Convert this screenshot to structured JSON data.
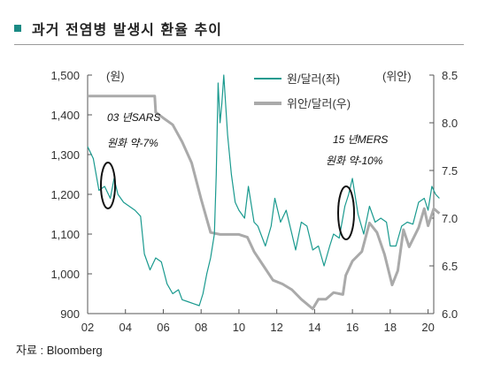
{
  "header": {
    "title": "과거 전염병 발생시 환율 추이"
  },
  "source": "자료 : Bloomberg",
  "colors": {
    "krw": "#1a9a8f",
    "cny": "#aaaaaa",
    "title_marker": "#1a8a84"
  },
  "chart_data": {
    "type": "line",
    "x_ticks": [
      "02",
      "04",
      "06",
      "08",
      "10",
      "12",
      "14",
      "16",
      "18",
      "20"
    ],
    "y_left": {
      "unit_label": "(원)",
      "ticks": [
        "900",
        "1,000",
        "1,100",
        "1,200",
        "1,300",
        "1,400",
        "1,500"
      ],
      "range": [
        900,
        1500
      ]
    },
    "y_right": {
      "unit_label": "(위안)",
      "ticks": [
        "6.0",
        "6.5",
        "7.0",
        "7.5",
        "8.0",
        "8.5"
      ],
      "range": [
        6.0,
        8.5
      ]
    },
    "series": [
      {
        "name": "원/달러(좌)",
        "axis": "left",
        "points": [
          [
            2002.0,
            1320
          ],
          [
            2002.3,
            1290
          ],
          [
            2002.6,
            1210
          ],
          [
            2002.9,
            1220
          ],
          [
            2003.2,
            1190
          ],
          [
            2003.4,
            1240
          ],
          [
            2003.6,
            1200
          ],
          [
            2003.9,
            1180
          ],
          [
            2004.2,
            1170
          ],
          [
            2004.5,
            1160
          ],
          [
            2004.8,
            1145
          ],
          [
            2005.0,
            1050
          ],
          [
            2005.3,
            1010
          ],
          [
            2005.6,
            1040
          ],
          [
            2005.9,
            1030
          ],
          [
            2006.2,
            975
          ],
          [
            2006.5,
            950
          ],
          [
            2006.8,
            960
          ],
          [
            2007.0,
            935
          ],
          [
            2007.3,
            930
          ],
          [
            2007.6,
            925
          ],
          [
            2007.9,
            920
          ],
          [
            2008.1,
            950
          ],
          [
            2008.3,
            1000
          ],
          [
            2008.5,
            1040
          ],
          [
            2008.7,
            1100
          ],
          [
            2008.8,
            1250
          ],
          [
            2008.9,
            1480
          ],
          [
            2009.0,
            1380
          ],
          [
            2009.1,
            1430
          ],
          [
            2009.2,
            1550
          ],
          [
            2009.4,
            1350
          ],
          [
            2009.6,
            1250
          ],
          [
            2009.8,
            1180
          ],
          [
            2010.0,
            1160
          ],
          [
            2010.3,
            1140
          ],
          [
            2010.5,
            1220
          ],
          [
            2010.8,
            1130
          ],
          [
            2011.0,
            1120
          ],
          [
            2011.4,
            1070
          ],
          [
            2011.7,
            1120
          ],
          [
            2011.9,
            1190
          ],
          [
            2012.2,
            1130
          ],
          [
            2012.5,
            1160
          ],
          [
            2012.8,
            1100
          ],
          [
            2013.0,
            1060
          ],
          [
            2013.3,
            1130
          ],
          [
            2013.6,
            1120
          ],
          [
            2013.9,
            1060
          ],
          [
            2014.2,
            1070
          ],
          [
            2014.5,
            1020
          ],
          [
            2014.8,
            1070
          ],
          [
            2015.0,
            1100
          ],
          [
            2015.3,
            1090
          ],
          [
            2015.6,
            1170
          ],
          [
            2015.8,
            1200
          ],
          [
            2016.0,
            1240
          ],
          [
            2016.3,
            1150
          ],
          [
            2016.6,
            1100
          ],
          [
            2016.9,
            1170
          ],
          [
            2017.2,
            1130
          ],
          [
            2017.5,
            1140
          ],
          [
            2017.8,
            1130
          ],
          [
            2018.0,
            1070
          ],
          [
            2018.3,
            1070
          ],
          [
            2018.6,
            1120
          ],
          [
            2018.9,
            1130
          ],
          [
            2019.2,
            1125
          ],
          [
            2019.5,
            1180
          ],
          [
            2019.8,
            1190
          ],
          [
            2020.0,
            1160
          ],
          [
            2020.2,
            1220
          ],
          [
            2020.4,
            1200
          ],
          [
            2020.6,
            1190
          ]
        ]
      },
      {
        "name": "위안/달러(우)",
        "axis": "right",
        "points": [
          [
            2002.0,
            8.28
          ],
          [
            2005.55,
            8.28
          ],
          [
            2005.6,
            8.11
          ],
          [
            2006.0,
            8.05
          ],
          [
            2006.5,
            7.98
          ],
          [
            2007.0,
            7.8
          ],
          [
            2007.5,
            7.58
          ],
          [
            2008.0,
            7.2
          ],
          [
            2008.5,
            6.85
          ],
          [
            2009.0,
            6.83
          ],
          [
            2010.0,
            6.83
          ],
          [
            2010.45,
            6.8
          ],
          [
            2010.8,
            6.65
          ],
          [
            2011.3,
            6.5
          ],
          [
            2011.8,
            6.35
          ],
          [
            2012.3,
            6.31
          ],
          [
            2012.8,
            6.25
          ],
          [
            2013.3,
            6.15
          ],
          [
            2013.9,
            6.05
          ],
          [
            2014.2,
            6.15
          ],
          [
            2014.6,
            6.15
          ],
          [
            2015.0,
            6.22
          ],
          [
            2015.5,
            6.2
          ],
          [
            2015.65,
            6.4
          ],
          [
            2016.0,
            6.55
          ],
          [
            2016.5,
            6.65
          ],
          [
            2016.9,
            6.95
          ],
          [
            2017.3,
            6.85
          ],
          [
            2017.7,
            6.62
          ],
          [
            2018.1,
            6.3
          ],
          [
            2018.4,
            6.45
          ],
          [
            2018.7,
            6.88
          ],
          [
            2019.0,
            6.7
          ],
          [
            2019.5,
            6.9
          ],
          [
            2019.8,
            7.1
          ],
          [
            2020.0,
            6.92
          ],
          [
            2020.3,
            7.1
          ],
          [
            2020.6,
            7.05
          ]
        ]
      }
    ],
    "annotations": [
      {
        "lines": [
          "03 년SARS",
          "원화 약-7%"
        ]
      },
      {
        "lines": [
          "15 년MERS",
          "원화 약-10%"
        ]
      }
    ],
    "legend_placement": "top-center",
    "grid": false
  }
}
